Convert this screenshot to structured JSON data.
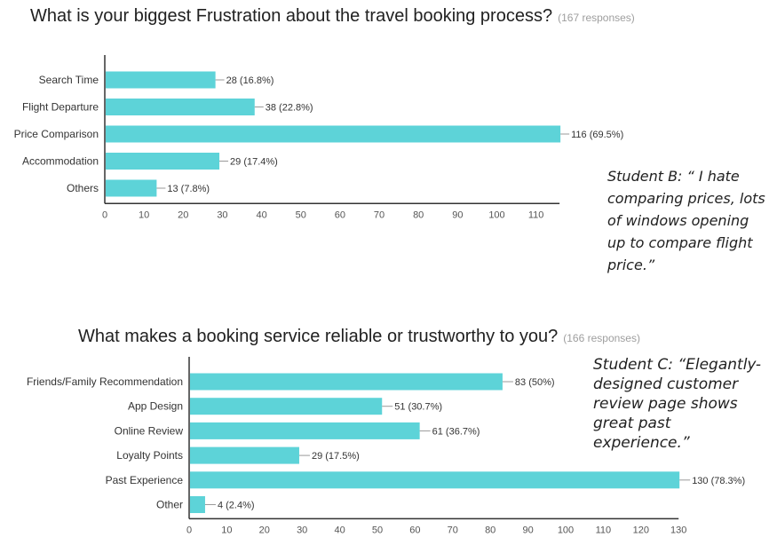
{
  "charts": [
    {
      "title": "What is your biggest Frustration about the travel booking process?",
      "responses": "(167 responses)",
      "quote": "Student B: “ I hate comparing prices, lots of windows opening up to compare flight price.”"
    },
    {
      "title": "What makes a booking service reliable or trustworthy to you?",
      "responses": "(166 responses)",
      "quote": "Student C: “Elegantly-designed customer review page shows great past experience.”"
    }
  ],
  "colors": {
    "bar": "#5dd3d8",
    "axis": "#333333",
    "leader": "#999999"
  },
  "chart_data": [
    {
      "type": "bar",
      "orientation": "horizontal",
      "categories": [
        "Search Time",
        "Flight Departure",
        "Price Comparison",
        "Accommodation",
        "Others"
      ],
      "values": [
        28,
        38,
        116,
        29,
        13
      ],
      "labels": [
        "28 (16.8%)",
        "38 (22.8%)",
        "116 (69.5%)",
        "29 (17.4%)",
        "13 (7.8%)"
      ],
      "xticks": [
        0,
        10,
        20,
        30,
        40,
        50,
        60,
        70,
        80,
        90,
        100,
        110
      ],
      "xlim": [
        0,
        116
      ],
      "title": "What is your biggest Frustration about the travel booking process?",
      "grid": false
    },
    {
      "type": "bar",
      "orientation": "horizontal",
      "categories": [
        "Friends/Family Recommendation",
        "App  Design",
        "Online Review",
        "Loyalty Points",
        "Past Experience",
        "Other"
      ],
      "values": [
        83,
        51,
        61,
        29,
        130,
        4
      ],
      "labels": [
        "83 (50%)",
        "51 (30.7%)",
        "61 (36.7%)",
        "29 (17.5%)",
        "130 (78.3%)",
        "4 (2.4%)"
      ],
      "xticks": [
        0,
        10,
        20,
        30,
        40,
        50,
        60,
        70,
        80,
        90,
        100,
        110,
        120,
        130
      ],
      "xlim": [
        0,
        130
      ],
      "title": "What makes a booking service reliable or trustworthy to you?",
      "grid": false
    }
  ]
}
